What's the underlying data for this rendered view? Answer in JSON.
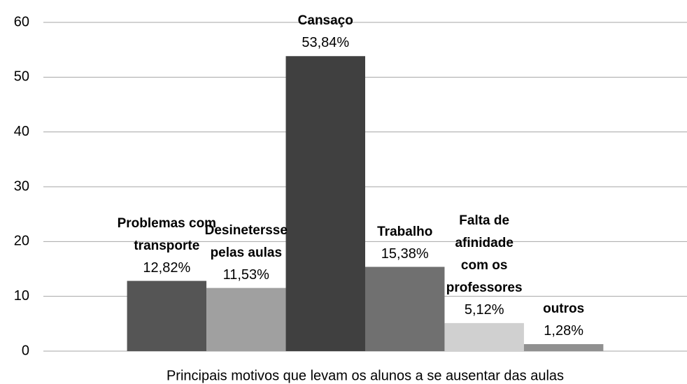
{
  "chart_data": {
    "type": "bar",
    "categories": [
      "Principais motivos que levam os alunos a se ausentar das aulas"
    ],
    "series": [
      {
        "name": "Problemas com transporte",
        "color": "#555555",
        "values": [
          12.82
        ],
        "value_labels": [
          "12,82%"
        ]
      },
      {
        "name": "Desinetersse pelas aulas",
        "color": "#a0a0a0",
        "values": [
          11.53
        ],
        "value_labels": [
          "11,53%"
        ]
      },
      {
        "name": "Cansaço",
        "color": "#404040",
        "values": [
          53.84
        ],
        "value_labels": [
          "53,84%"
        ]
      },
      {
        "name": "Trabalho",
        "color": "#707070",
        "values": [
          15.38
        ],
        "value_labels": [
          "15,38%"
        ]
      },
      {
        "name": "Falta de afinidade com os professores",
        "color": "#d0d0d0",
        "values": [
          5.12
        ],
        "value_labels": [
          "5,12%"
        ]
      },
      {
        "name": "outros",
        "color": "#909090",
        "values": [
          1.28
        ],
        "value_labels": [
          "1,28%"
        ]
      }
    ],
    "ylim": [
      0,
      60
    ],
    "yticks": [
      0,
      10,
      20,
      30,
      40,
      50,
      60
    ],
    "grid": true
  }
}
